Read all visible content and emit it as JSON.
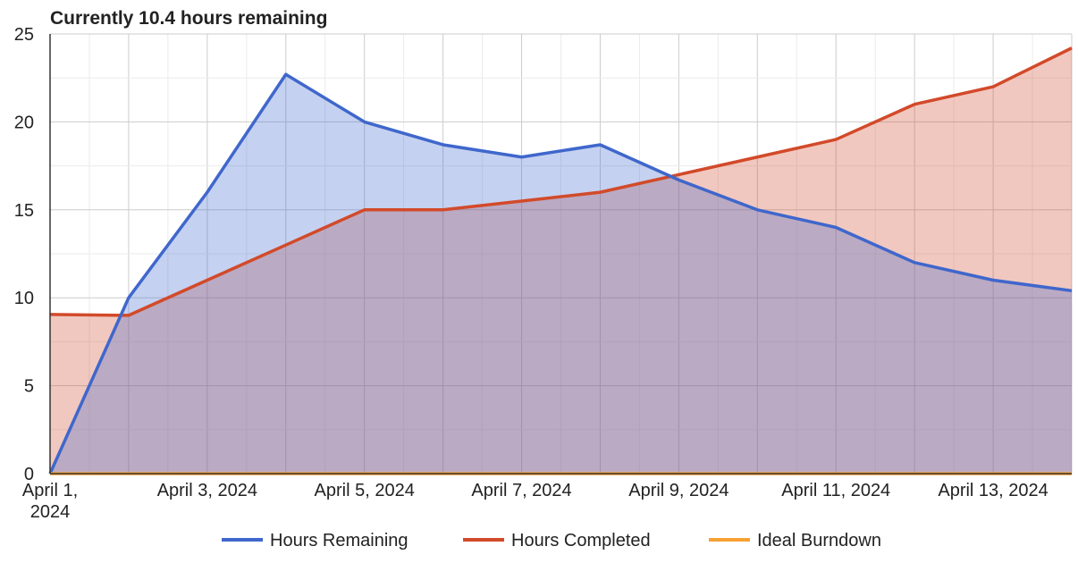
{
  "title": "Currently 10.4 hours remaining",
  "chart_data": {
    "type": "area",
    "title": "Currently 10.4 hours remaining",
    "xlabel": "",
    "ylabel": "",
    "x": [
      "April 1, 2024",
      "April 2, 2024",
      "April 3, 2024",
      "April 4, 2024",
      "April 5, 2024",
      "April 6, 2024",
      "April 7, 2024",
      "April 8, 2024",
      "April 9, 2024",
      "April 10, 2024",
      "April 11, 2024",
      "April 12, 2024",
      "April 13, 2024",
      "April 14, 2024"
    ],
    "x_tick_labels": [
      {
        "index": 0,
        "lines": [
          "April 1,",
          "2024"
        ]
      },
      {
        "index": 2,
        "lines": [
          "April 3, 2024"
        ]
      },
      {
        "index": 4,
        "lines": [
          "April 5, 2024"
        ]
      },
      {
        "index": 6,
        "lines": [
          "April 7, 2024"
        ]
      },
      {
        "index": 8,
        "lines": [
          "April 9, 2024"
        ]
      },
      {
        "index": 10,
        "lines": [
          "April 11, 2024"
        ]
      },
      {
        "index": 12,
        "lines": [
          "April 13, 2024"
        ]
      }
    ],
    "y_ticks": [
      0,
      5,
      10,
      15,
      20,
      25
    ],
    "ylim": [
      0,
      25
    ],
    "grid": true,
    "legend_position": "bottom",
    "series": [
      {
        "name": "Hours Remaining",
        "color": "#3f67cc",
        "values": [
          0,
          10,
          16,
          22.7,
          20,
          18.7,
          18,
          18.7,
          16.7,
          15,
          14,
          12,
          11,
          10.4
        ]
      },
      {
        "name": "Hours Completed",
        "color": "#d24a2a",
        "values": [
          9.05,
          9,
          11,
          13,
          15,
          15,
          15.5,
          16,
          17,
          18,
          19,
          21,
          22,
          24.2
        ]
      },
      {
        "name": "Ideal Burndown",
        "color": "#f7a133",
        "values": [
          0,
          0,
          0,
          0,
          0,
          0,
          0,
          0,
          0,
          0,
          0,
          0,
          0,
          0
        ]
      }
    ]
  }
}
